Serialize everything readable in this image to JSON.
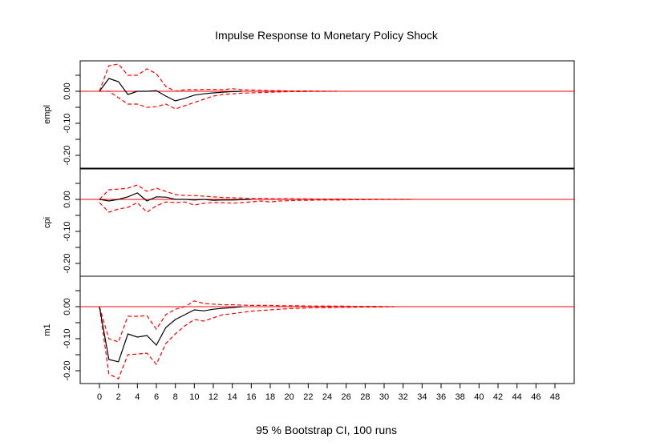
{
  "title": "Impulse Response to Monetary Policy Shock",
  "footer": "95 % Bootstrap CI,  100 runs",
  "colors": {
    "ci": "#ff0000",
    "zero": "#ff0000",
    "irf": "#000000",
    "frame": "#000000"
  },
  "chart_data": {
    "type": "line",
    "title": "Impulse Response to Monetary Policy Shock",
    "x_ticks": [
      0,
      2,
      4,
      6,
      8,
      10,
      12,
      14,
      16,
      18,
      20,
      22,
      24,
      26,
      28,
      30,
      32,
      34,
      36,
      38,
      40,
      42,
      44,
      46,
      48
    ],
    "x_tick_labels": [
      "0",
      "2",
      "4",
      "6",
      "8",
      "10",
      "12",
      "14",
      "16",
      "18",
      "20",
      "22",
      "24",
      "26",
      "28",
      "30",
      "32",
      "34",
      "36",
      "38",
      "40",
      "42",
      "44",
      "46",
      "48"
    ],
    "xlim": [
      0,
      48
    ],
    "y_ticks": [
      -0.2,
      -0.1,
      0.0
    ],
    "y_tick_labels": [
      "-0.20",
      "-0.10",
      "0.00"
    ],
    "grid": false,
    "panels": [
      {
        "name": "empl",
        "ylim": [
          -0.24,
          0.095
        ],
        "irf": {
          "x": [
            0,
            1,
            2,
            3,
            4,
            5,
            6,
            7,
            8,
            9,
            10,
            11,
            12,
            13,
            14,
            15
          ],
          "y": [
            0,
            0.04,
            0.03,
            -0.01,
            0.0,
            0.0,
            0.002,
            -0.015,
            -0.03,
            -0.022,
            -0.012,
            -0.008,
            -0.005,
            -0.003,
            -0.001,
            0
          ]
        },
        "upper": {
          "x": [
            0,
            1,
            2,
            3,
            4,
            5,
            6,
            7,
            8,
            9,
            10,
            11,
            12,
            13,
            14,
            15,
            16,
            17,
            18,
            19,
            20,
            21,
            22,
            23,
            24,
            25
          ],
          "y": [
            0,
            0.08,
            0.085,
            0.05,
            0.05,
            0.07,
            0.055,
            0.015,
            0.0,
            0.005,
            0.005,
            0.006,
            0.006,
            0.005,
            0.008,
            0.005,
            0.004,
            0.003,
            0.002,
            0.002,
            0.001,
            0.001,
            0.001,
            0.0005,
            0.0003,
            0
          ]
        },
        "lower": {
          "x": [
            0,
            1,
            2,
            3,
            4,
            5,
            6,
            7,
            8,
            9,
            10,
            11,
            12,
            13,
            14,
            15,
            16,
            17,
            18,
            19,
            20,
            21,
            22,
            23,
            24,
            25
          ],
          "y": [
            0,
            0.0,
            -0.02,
            -0.04,
            -0.04,
            -0.05,
            -0.048,
            -0.04,
            -0.055,
            -0.045,
            -0.035,
            -0.025,
            -0.015,
            -0.01,
            -0.008,
            -0.006,
            -0.005,
            -0.004,
            -0.003,
            -0.002,
            -0.001,
            -0.001,
            -0.0005,
            -0.0003,
            -0.0002,
            0
          ]
        }
      },
      {
        "name": "cpi",
        "ylim": [
          -0.24,
          0.095
        ],
        "irf": {
          "x": [
            0,
            1,
            2,
            3,
            4,
            5,
            6,
            7,
            8,
            9,
            10,
            11,
            12,
            13,
            14,
            15,
            16
          ],
          "y": [
            0,
            -0.005,
            0.0,
            0.008,
            0.02,
            -0.005,
            0.008,
            0.007,
            0.0,
            0.0,
            -0.002,
            0.0,
            -0.003,
            -0.002,
            -0.002,
            -0.001,
            0
          ]
        },
        "upper": {
          "x": [
            0,
            1,
            2,
            3,
            4,
            5,
            6,
            7,
            8,
            9,
            10,
            11,
            12,
            13,
            14,
            15,
            16,
            17,
            18,
            19,
            20,
            21,
            22,
            23,
            24,
            25,
            26,
            27,
            28,
            29,
            30,
            31,
            32,
            33
          ],
          "y": [
            0.0,
            0.03,
            0.032,
            0.035,
            0.045,
            0.025,
            0.035,
            0.025,
            0.015,
            0.012,
            0.012,
            0.01,
            0.008,
            0.006,
            0.005,
            0.004,
            0.003,
            0.003,
            0.002,
            0.002,
            0.002,
            0.0015,
            0.0015,
            0.001,
            0.001,
            0.001,
            0.0008,
            0.0006,
            0.0005,
            0.0004,
            0.0003,
            0.0002,
            0.0001,
            0
          ]
        },
        "lower": {
          "x": [
            0,
            1,
            2,
            3,
            4,
            5,
            6,
            7,
            8,
            9,
            10,
            11,
            12,
            13,
            14,
            15,
            16,
            17,
            18,
            19,
            20,
            21,
            22,
            23,
            24,
            25,
            26,
            27,
            28,
            29,
            30,
            31,
            32,
            33
          ],
          "y": [
            -0.01,
            -0.04,
            -0.03,
            -0.025,
            -0.01,
            -0.04,
            -0.02,
            -0.008,
            -0.01,
            -0.008,
            -0.018,
            -0.012,
            -0.01,
            -0.01,
            -0.012,
            -0.01,
            -0.008,
            -0.005,
            -0.008,
            -0.005,
            -0.004,
            -0.003,
            -0.003,
            -0.002,
            -0.002,
            -0.002,
            -0.0015,
            -0.001,
            -0.001,
            -0.0008,
            -0.0005,
            -0.0003,
            -0.0002,
            0
          ]
        }
      },
      {
        "name": "m1",
        "ylim": [
          -0.24,
          0.095
        ],
        "irf": {
          "x": [
            0,
            1,
            2,
            3,
            4,
            5,
            6,
            7,
            8,
            9,
            10,
            11,
            12,
            13,
            14,
            15
          ],
          "y": [
            0,
            -0.165,
            -0.172,
            -0.085,
            -0.095,
            -0.09,
            -0.12,
            -0.065,
            -0.04,
            -0.025,
            -0.01,
            -0.013,
            -0.008,
            -0.005,
            -0.003,
            0
          ]
        },
        "upper": {
          "x": [
            0,
            1,
            2,
            3,
            4,
            5,
            6,
            7,
            8,
            9,
            10,
            11,
            12,
            13,
            14,
            15,
            16,
            17,
            18,
            19,
            20,
            21,
            22,
            23,
            24,
            25,
            26,
            27,
            28,
            29,
            30,
            31
          ],
          "y": [
            0,
            -0.1,
            -0.11,
            -0.03,
            -0.03,
            -0.028,
            -0.07,
            -0.025,
            -0.008,
            0.0,
            0.018,
            0.01,
            0.008,
            0.006,
            0.006,
            0.005,
            0.004,
            0.004,
            0.004,
            0.003,
            0.003,
            0.003,
            0.002,
            0.002,
            0.002,
            0.0015,
            0.0015,
            0.001,
            0.001,
            0.001,
            0.0005,
            0.0003
          ]
        },
        "lower": {
          "x": [
            0,
            1,
            2,
            3,
            4,
            5,
            6,
            7,
            8,
            9,
            10,
            11,
            12,
            13,
            14,
            15,
            16,
            17,
            18,
            19,
            20,
            21,
            22,
            23,
            24,
            25,
            26,
            27,
            28,
            29,
            30,
            31
          ],
          "y": [
            0,
            -0.21,
            -0.225,
            -0.15,
            -0.148,
            -0.145,
            -0.18,
            -0.115,
            -0.085,
            -0.06,
            -0.04,
            -0.045,
            -0.035,
            -0.025,
            -0.022,
            -0.018,
            -0.014,
            -0.012,
            -0.01,
            -0.008,
            -0.006,
            -0.005,
            -0.004,
            -0.003,
            -0.003,
            -0.002,
            -0.002,
            -0.0015,
            -0.001,
            -0.001,
            -0.0005,
            -0.0003
          ]
        }
      }
    ]
  }
}
